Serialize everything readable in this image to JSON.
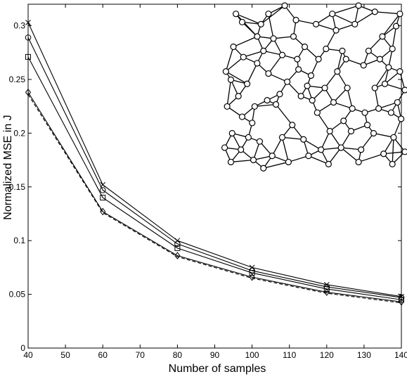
{
  "chart_data": {
    "type": "line",
    "title": "",
    "xlabel": "Number of samples",
    "ylabel": "Normalized MSE in J",
    "xlim": [
      40,
      140
    ],
    "ylim": [
      0,
      0.32
    ],
    "grid": false,
    "x": [
      40,
      60,
      80,
      100,
      120,
      140
    ],
    "x_ticks": [
      40,
      50,
      60,
      70,
      80,
      90,
      100,
      110,
      120,
      130,
      140
    ],
    "x_tick_labels": [
      "40",
      "50",
      "60",
      "70",
      "80",
      "90",
      "100",
      "110",
      "120",
      "130",
      "140"
    ],
    "y_ticks": [
      0,
      0.05,
      0.1,
      0.15,
      0.2,
      0.25,
      0.3
    ],
    "y_tick_labels": [
      "0",
      "0.05",
      "0.1",
      "0.15",
      "0.2",
      "0.25",
      "0.3"
    ],
    "series": [
      {
        "marker": "x",
        "dash": "solid",
        "values": [
          0.303,
          0.152,
          0.1,
          0.075,
          0.059,
          0.048
        ]
      },
      {
        "marker": "o",
        "dash": "solid",
        "values": [
          0.289,
          0.147,
          0.097,
          0.072,
          0.057,
          0.047
        ]
      },
      {
        "marker": "s",
        "dash": "solid",
        "values": [
          0.271,
          0.14,
          0.093,
          0.07,
          0.055,
          0.045
        ]
      },
      {
        "marker": "d",
        "dash": "solid",
        "values": [
          0.238,
          0.127,
          0.086,
          0.066,
          0.052,
          0.043
        ]
      },
      {
        "marker": "none",
        "dash": "dashed",
        "values": [
          0.236,
          0.126,
          0.085,
          0.065,
          0.051,
          0.042
        ]
      }
    ],
    "inset": {
      "type": "network-graph",
      "node_marker": "o",
      "nodes": [
        [
          1.6,
          7.4
        ],
        [
          2.8,
          6.7
        ],
        [
          3.7,
          7.8
        ],
        [
          5.0,
          8.2
        ],
        [
          5.9,
          7.5
        ],
        [
          6.6,
          6.2
        ],
        [
          6.0,
          5.6
        ],
        [
          7.1,
          4.8
        ],
        [
          8.3,
          6.1
        ],
        [
          9.1,
          7.0
        ],
        [
          9.6,
          6.0
        ],
        [
          10.6,
          7.3
        ],
        [
          10.9,
          8.2
        ],
        [
          12.2,
          7.9
        ],
        [
          12.8,
          6.7
        ],
        [
          13.3,
          5.2
        ],
        [
          14.0,
          3.5
        ],
        [
          12.2,
          4.2
        ],
        [
          11.3,
          5.3
        ],
        [
          10.0,
          4.2
        ],
        [
          8.9,
          3.5
        ],
        [
          7.6,
          3.0
        ],
        [
          6.3,
          3.8
        ],
        [
          5.2,
          4.5
        ],
        [
          4.3,
          3.4
        ],
        [
          3.7,
          4.9
        ],
        [
          2.8,
          5.4
        ],
        [
          1.7,
          5.7
        ],
        [
          0.9,
          6.2
        ],
        [
          0.7,
          4.6
        ],
        [
          0.4,
          3.3
        ],
        [
          0.8,
          2.0
        ],
        [
          1.6,
          2.8
        ],
        [
          2.4,
          2.5
        ],
        [
          3.0,
          1.6
        ],
        [
          2.5,
          0.7
        ],
        [
          1.5,
          1.2
        ],
        [
          0.7,
          0.6
        ],
        [
          4.0,
          0.9
        ],
        [
          4.8,
          1.8
        ],
        [
          5.6,
          2.4
        ],
        [
          6.5,
          1.7
        ],
        [
          6.9,
          0.9
        ],
        [
          7.9,
          1.2
        ],
        [
          8.6,
          2.1
        ],
        [
          9.5,
          1.3
        ],
        [
          10.3,
          2.1
        ],
        [
          11.1,
          1.2
        ],
        [
          12.1,
          2.0
        ],
        [
          12.9,
          1.0
        ],
        [
          13.7,
          1.8
        ],
        [
          14.3,
          2.7
        ],
        [
          13.5,
          3.0
        ],
        [
          12.5,
          3.2
        ],
        [
          11.4,
          3.0
        ],
        [
          10.4,
          3.2
        ],
        [
          9.7,
          2.6
        ],
        [
          8.2,
          4.2
        ],
        [
          6.8,
          4.3
        ],
        [
          4.8,
          5.8
        ],
        [
          4.1,
          6.6
        ],
        [
          3.3,
          6.0
        ],
        [
          2.0,
          4.4
        ],
        [
          1.3,
          3.8
        ],
        [
          3.6,
          3.6
        ],
        [
          2.6,
          3.3
        ],
        [
          11.7,
          6.0
        ],
        [
          13.6,
          6.1
        ],
        [
          14.2,
          5.0
        ],
        [
          14.6,
          4.1
        ],
        [
          13.9,
          7.2
        ],
        [
          14.2,
          7.8
        ],
        [
          9.2,
          5.0
        ],
        [
          7.7,
          5.6
        ],
        [
          5.7,
          6.7
        ],
        [
          3.1,
          7.3
        ],
        [
          1.1,
          7.8
        ],
        [
          14.6,
          1.1
        ],
        [
          13.6,
          0.5
        ],
        [
          10.9,
          0.6
        ],
        [
          8.5,
          0.5
        ],
        [
          5.3,
          0.6
        ],
        [
          3.3,
          0.3
        ],
        [
          0.2,
          1.3
        ],
        [
          0.3,
          5.0
        ],
        [
          6.1,
          5.1
        ],
        [
          9.9,
          5.6
        ],
        [
          12.6,
          5.6
        ],
        [
          11.6,
          2.4
        ],
        [
          7.2,
          3.6
        ],
        [
          4.6,
          3.9
        ],
        [
          2.1,
          1.8
        ],
        [
          13.0,
          4.4
        ],
        [
          8.8,
          7.8
        ],
        [
          7.5,
          7.3
        ]
      ]
    }
  }
}
